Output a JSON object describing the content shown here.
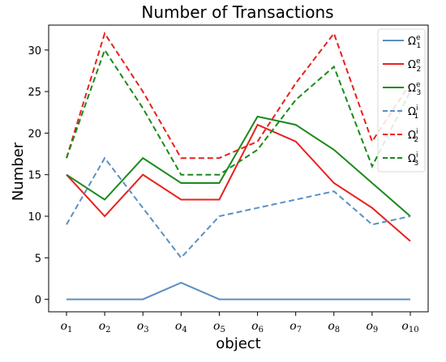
{
  "chart_data": {
    "type": "line",
    "title": "Number of Transactions",
    "xlabel": "object",
    "ylabel": "Number",
    "ylim": [
      -1.5,
      33
    ],
    "yticks": [
      0,
      5,
      10,
      15,
      20,
      25,
      30
    ],
    "categories": [
      {
        "base": "o",
        "sub": "1"
      },
      {
        "base": "o",
        "sub": "2"
      },
      {
        "base": "o",
        "sub": "3"
      },
      {
        "base": "o",
        "sub": "4"
      },
      {
        "base": "o",
        "sub": "5"
      },
      {
        "base": "o",
        "sub": "6"
      },
      {
        "base": "o",
        "sub": "7"
      },
      {
        "base": "o",
        "sub": "8"
      },
      {
        "base": "o",
        "sub": "9"
      },
      {
        "base": "o",
        "sub": "10"
      }
    ],
    "grid": false,
    "legend_position": "top-right",
    "series": [
      {
        "name": "Ω",
        "sub": "1",
        "sup": "e",
        "color": "#5b8fc2",
        "dash": "solid",
        "values": [
          0,
          0,
          0,
          2,
          0,
          0,
          0,
          0,
          0,
          0
        ]
      },
      {
        "name": "Ω",
        "sub": "2",
        "sup": "e",
        "color": "#e8211d",
        "dash": "solid",
        "values": [
          15,
          10,
          15,
          12,
          12,
          21,
          19,
          14,
          11,
          7
        ]
      },
      {
        "name": "Ω",
        "sub": "3",
        "sup": "e",
        "color": "#1a8a1a",
        "dash": "solid",
        "values": [
          15,
          12,
          17,
          14,
          14,
          22,
          21,
          18,
          14,
          10
        ]
      },
      {
        "name": "Ω",
        "sub": "1",
        "sup": "i",
        "color": "#5b8fc2",
        "dash": "dashed",
        "values": [
          9,
          17,
          11,
          5,
          10,
          11,
          12,
          13,
          9,
          10
        ]
      },
      {
        "name": "Ω",
        "sub": "2",
        "sup": "i",
        "color": "#e8211d",
        "dash": "dashed",
        "values": [
          17,
          32,
          25,
          17,
          17,
          19,
          26,
          32,
          19,
          26
        ]
      },
      {
        "name": "Ω",
        "sub": "3",
        "sup": "i",
        "color": "#1a8a1a",
        "dash": "dashed",
        "values": [
          17,
          30,
          23,
          15,
          15,
          18,
          24,
          28,
          16,
          25
        ]
      }
    ]
  }
}
